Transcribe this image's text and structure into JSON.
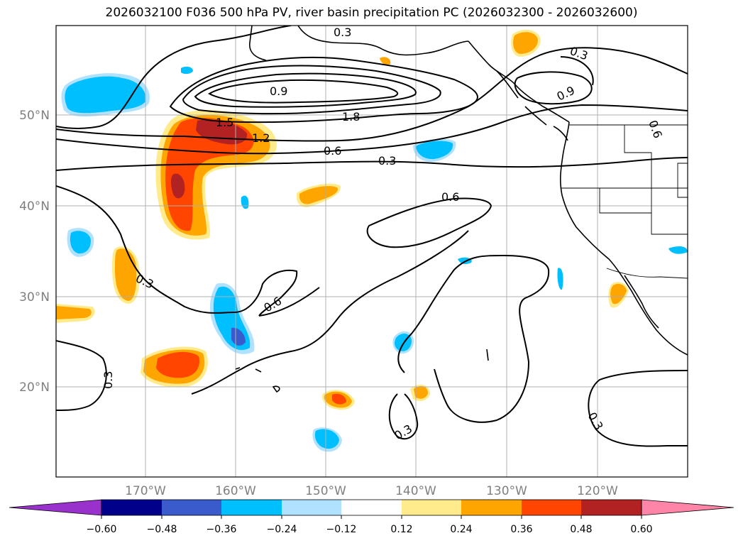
{
  "title": "2026032100 F036 500 hPa PV, river basin precipitation PC (2026032300 - 2026032600)",
  "map": {
    "region": "North Pacific",
    "lon_labels": [
      "170°W",
      "160°W",
      "150°W",
      "140°W",
      "130°W",
      "120°W"
    ],
    "lat_labels": [
      "50°N",
      "40°N",
      "30°N",
      "20°N"
    ],
    "contour_labels": [
      "0.3",
      "0.9",
      "1.8",
      "1.5",
      "1.2",
      "0.6",
      "0.3",
      "0.6",
      "0.3",
      "0.6",
      "0.3",
      "0.3",
      "0.3",
      "0.9",
      "0.3",
      "0.6"
    ]
  },
  "colorbar": {
    "ticks": [
      "−0.60",
      "−0.48",
      "−0.36",
      "−0.24",
      "−0.12",
      "0.12",
      "0.24",
      "0.36",
      "0.48",
      "0.60"
    ],
    "colors": [
      "#9932cc",
      "#00008b",
      "#3a5bcc",
      "#00bfff",
      "#b0e2ff",
      "#ffffff",
      "#ffeb8c",
      "#ffa500",
      "#ff4500",
      "#b22222",
      "#ff85a8"
    ]
  }
}
